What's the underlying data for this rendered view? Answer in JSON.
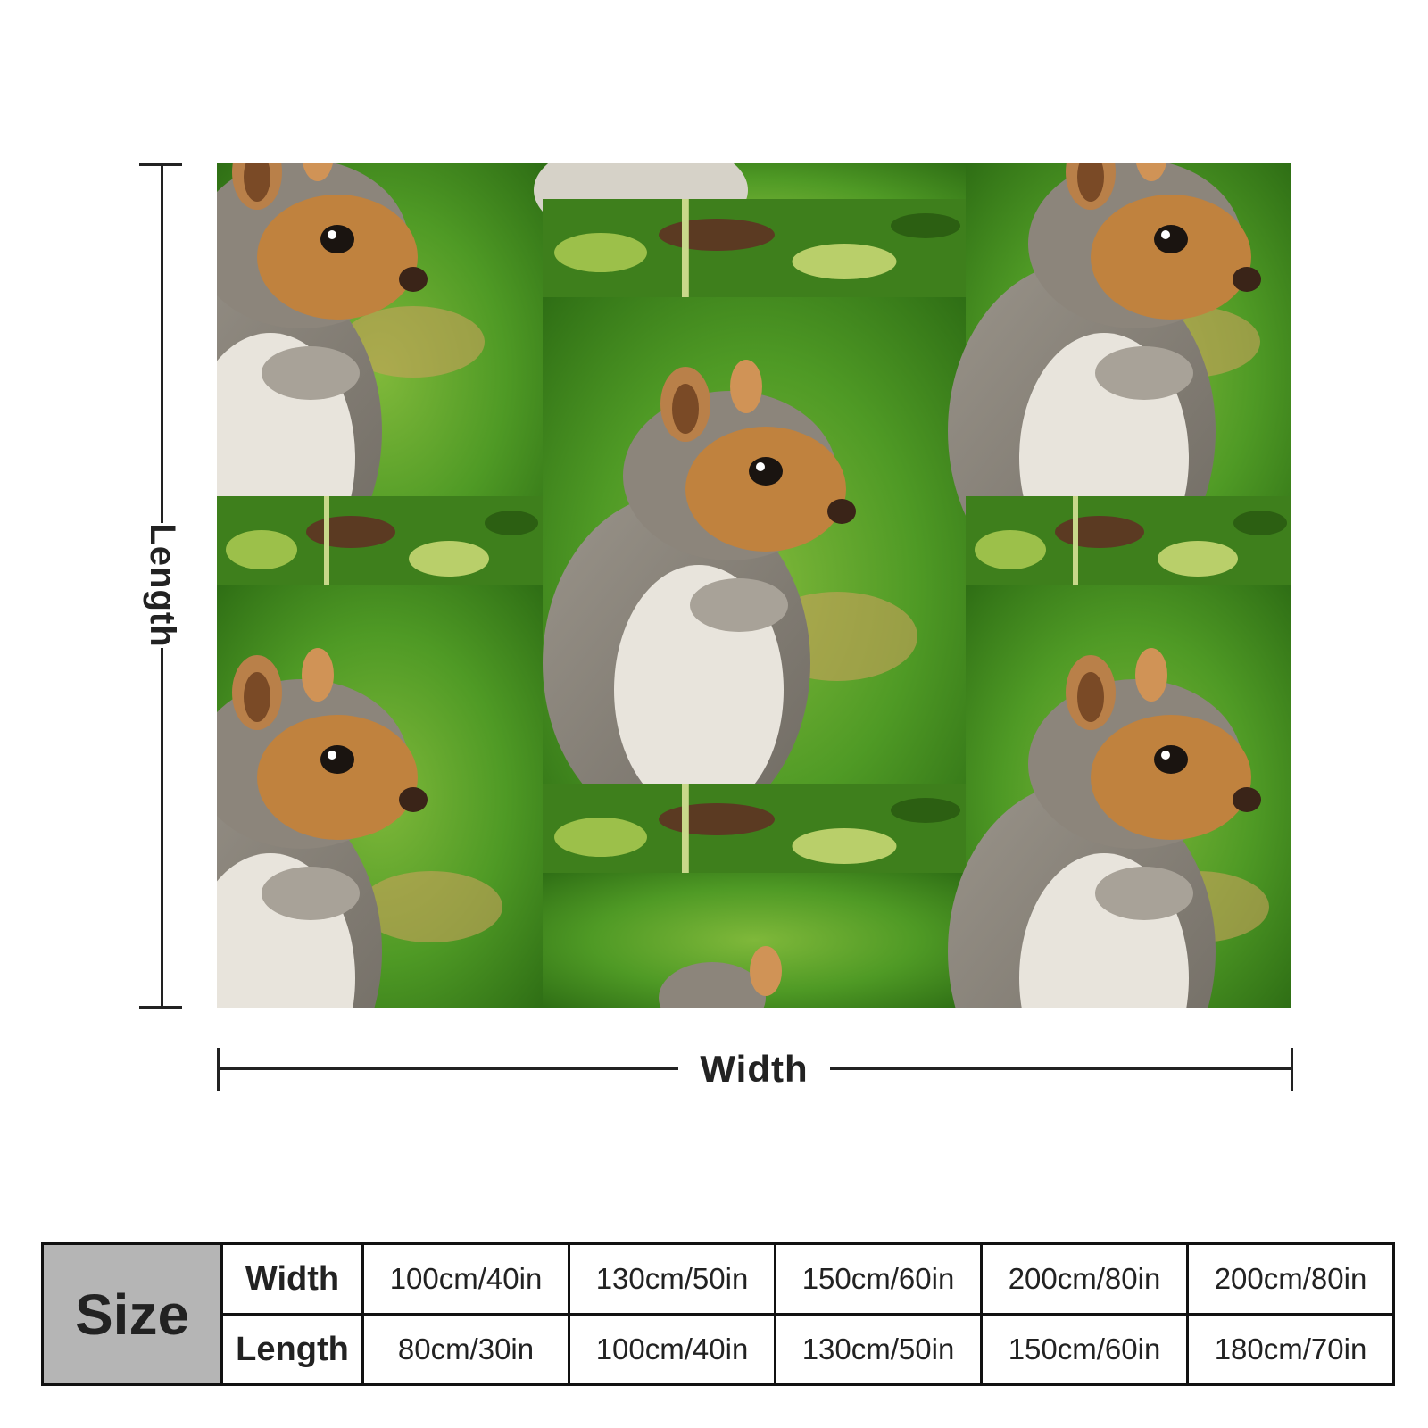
{
  "dimension_labels": {
    "length": "Length",
    "width": "Width"
  },
  "size_table": {
    "header": "Size",
    "rows": [
      {
        "label": "Width",
        "values": [
          "100cm/40in",
          "130cm/50in",
          "150cm/60in",
          "200cm/80in",
          "200cm/80in"
        ]
      },
      {
        "label": "Length",
        "values": [
          "80cm/30in",
          "100cm/40in",
          "130cm/50in",
          "150cm/60in",
          "180cm/70in"
        ]
      }
    ]
  },
  "colors": {
    "grass": "#3f8a1f",
    "size_header_bg": "#b5b5b5",
    "line": "#222222"
  }
}
